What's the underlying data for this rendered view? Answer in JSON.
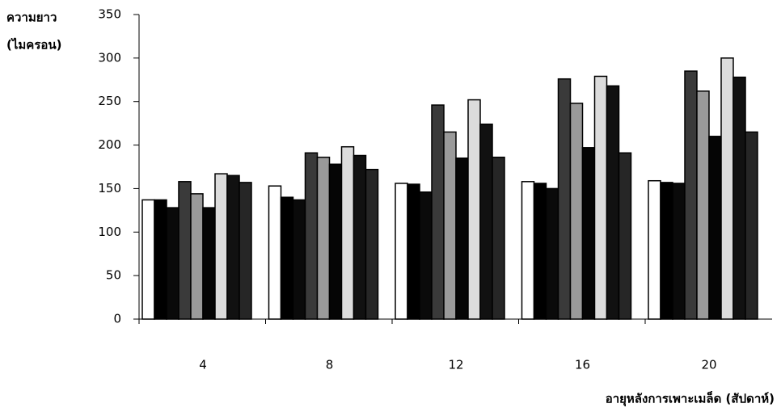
{
  "chart_data": {
    "type": "bar",
    "ylabel": [
      "ความยาว",
      "(ไมครอน)"
    ],
    "xlabel": "อายุหลังการเพาะเมล็ด (สัปดาห์)",
    "categories": [
      "4",
      "8",
      "12",
      "16",
      "20"
    ],
    "series": [
      {
        "color": "#ffffff",
        "values": [
          137,
          153,
          156,
          158,
          159
        ]
      },
      {
        "color": "#000000",
        "values": [
          137,
          140,
          155,
          156,
          157
        ]
      },
      {
        "color": "#0a0a0a",
        "values": [
          128,
          137,
          146,
          150,
          156
        ]
      },
      {
        "color": "#3a3a3a",
        "values": [
          158,
          191,
          246,
          276,
          285
        ]
      },
      {
        "color": "#9a9a9a",
        "values": [
          144,
          186,
          215,
          248,
          262
        ]
      },
      {
        "color": "#050505",
        "values": [
          128,
          178,
          185,
          197,
          210
        ]
      },
      {
        "color": "#dcdcdc",
        "values": [
          167,
          198,
          252,
          279,
          300
        ]
      },
      {
        "color": "#111111",
        "values": [
          165,
          188,
          224,
          268,
          278
        ]
      },
      {
        "color": "#262626",
        "values": [
          157,
          172,
          186,
          191,
          215
        ]
      }
    ],
    "ylim": [
      0,
      350
    ],
    "yticks": [
      0,
      50,
      100,
      150,
      200,
      250,
      300,
      350
    ]
  }
}
